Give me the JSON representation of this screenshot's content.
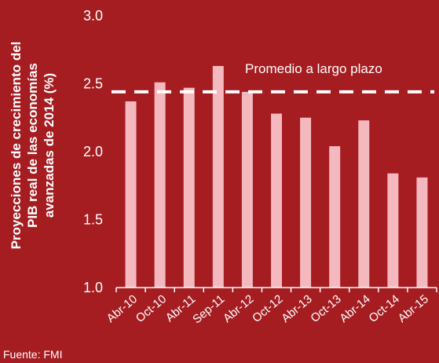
{
  "chart_data": {
    "type": "bar",
    "ylabel_lines": [
      "Proyecciones de crecimiento del",
      "PIB real de las economías",
      "avanzadas de 2014 (%)"
    ],
    "categories": [
      "Abr-10",
      "Oct-10",
      "Abr-11",
      "Sep-11",
      "Abr-12",
      "Oct-12",
      "Abr-13",
      "Oct-13",
      "Abr-14",
      "Oct-14",
      "Abr-15"
    ],
    "values": [
      2.37,
      2.51,
      2.47,
      2.63,
      2.44,
      2.28,
      2.25,
      2.04,
      2.23,
      1.84,
      1.81
    ],
    "ylim": [
      1.0,
      3.0
    ],
    "yticks": [
      "1.0",
      "1.5",
      "2.0",
      "2.5",
      "3.0"
    ],
    "grid": false,
    "reference_line": {
      "label": "Promedio a largo plazo",
      "value": 2.44
    },
    "source": "Fuente: FMI",
    "colors": {
      "background": "#a51c21",
      "bar": "#f4b9bf",
      "text": "#ffffff"
    }
  }
}
